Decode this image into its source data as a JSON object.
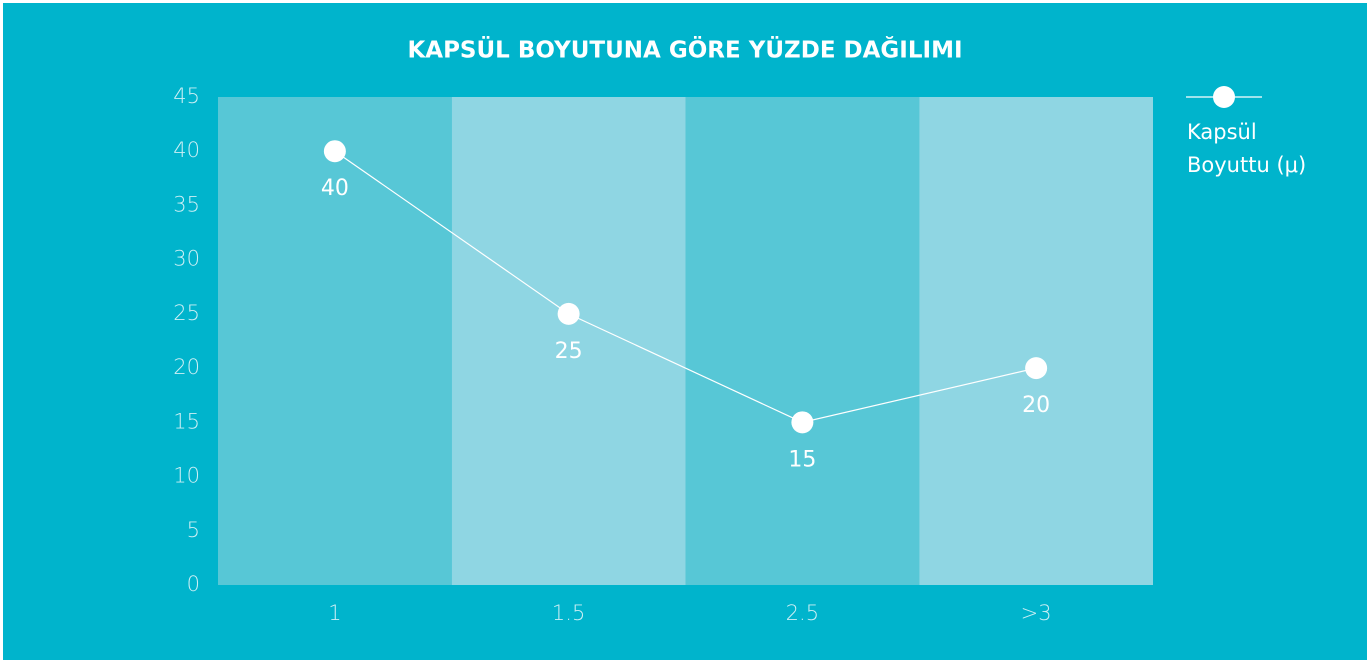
{
  "chart_data": {
    "type": "line",
    "title": "KAPSÜL BOYUTUNA GÖRE YÜZDE DAĞILIMI",
    "categories": [
      "1",
      "1.5",
      "2.5",
      ">3"
    ],
    "series": [
      {
        "name": "Kapsül Boyuttu (μ)",
        "color": "#ffffff",
        "values": [
          40,
          25,
          15,
          20
        ]
      }
    ],
    "ylim": [
      0,
      45
    ],
    "yticks": [
      0,
      5,
      10,
      15,
      20,
      25,
      30,
      35,
      40,
      45
    ],
    "band_colors": [
      "#57c7d6",
      "#8fd6e3"
    ],
    "legend": "right"
  }
}
